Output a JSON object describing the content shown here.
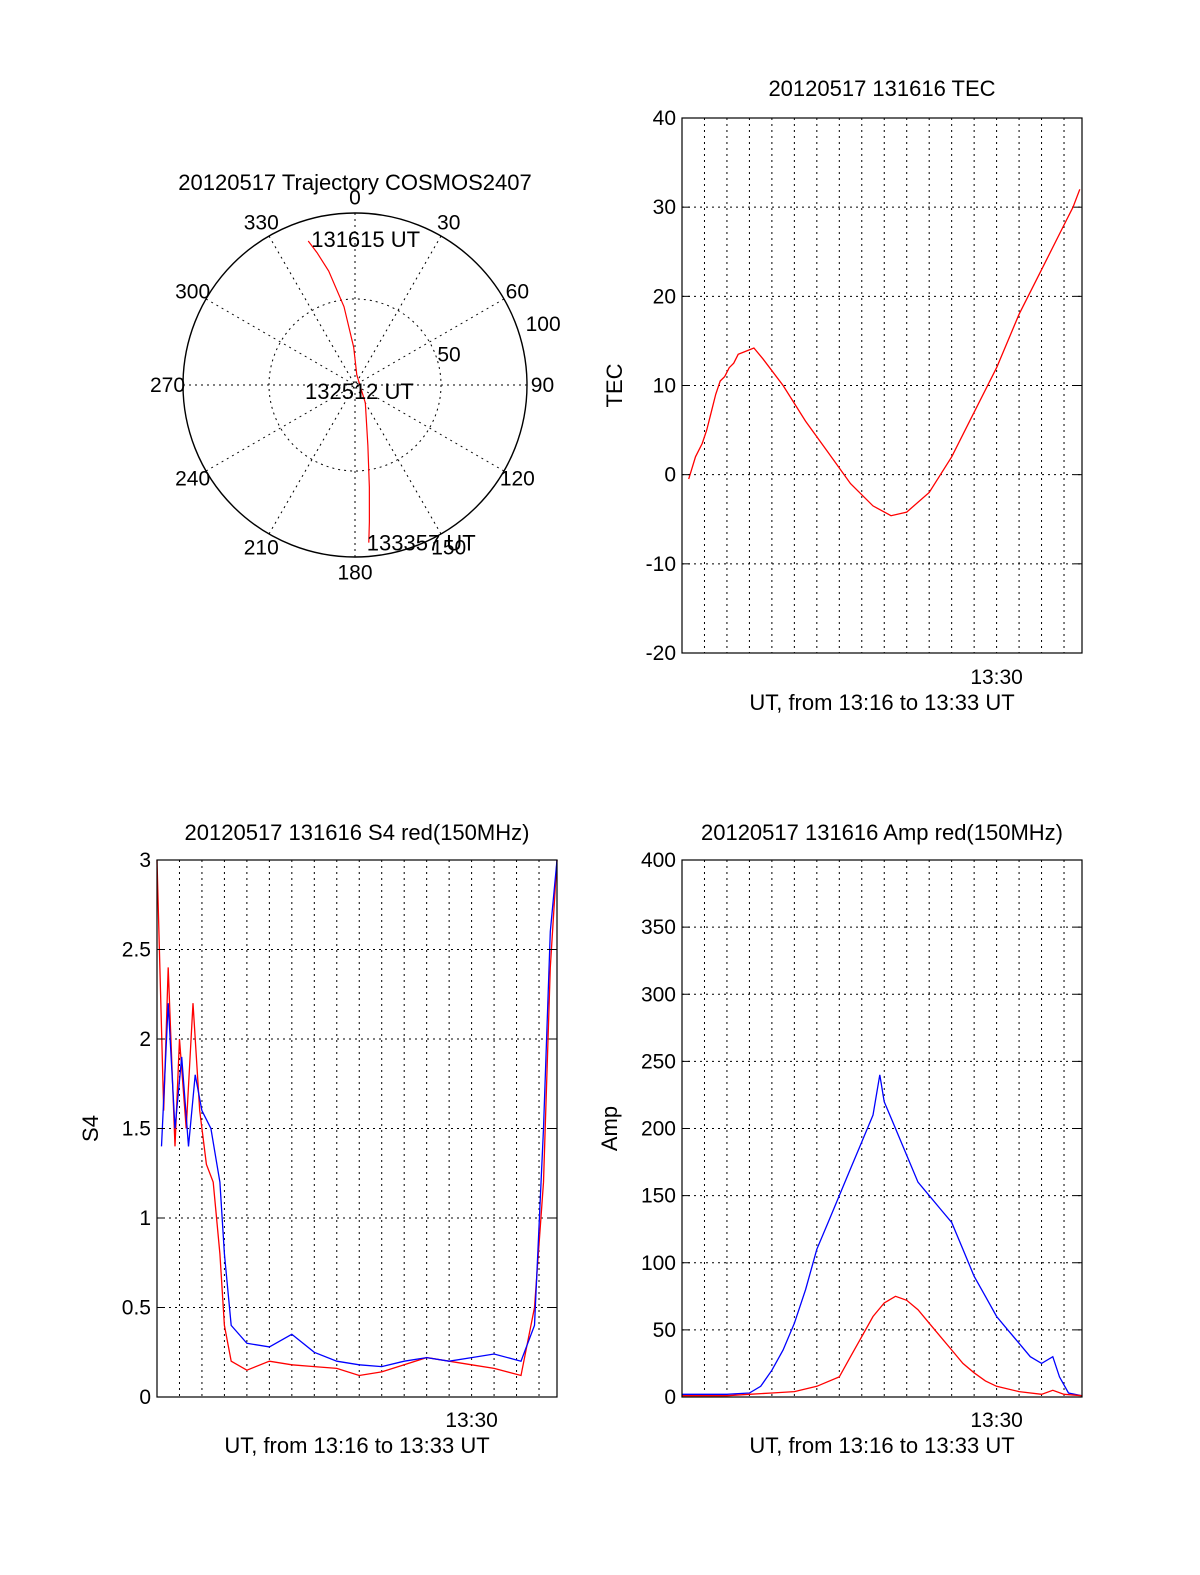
{
  "colors": {
    "red": "#ff0000",
    "blue": "#0000ff",
    "axis": "#000000"
  },
  "polar": {
    "title": "20120517 Trajectory COSMOS2407",
    "azimuth_labels": [
      "0",
      "30",
      "60",
      "90",
      "120",
      "150",
      "180",
      "210",
      "240",
      "270",
      "300",
      "330"
    ],
    "azimuths": [
      0,
      30,
      60,
      90,
      120,
      150,
      180,
      210,
      240,
      270,
      300,
      330
    ],
    "radius_labels": [
      "50",
      "100"
    ],
    "radius_values": [
      50,
      100
    ],
    "rmax": 100,
    "start_label": "131615 UT",
    "mid_label": "132512 UT",
    "end_label": "133357 UT",
    "track": [
      [
        342,
        88
      ],
      [
        344,
        80
      ],
      [
        347,
        68
      ],
      [
        352,
        46
      ],
      [
        358,
        22
      ],
      [
        10,
        6
      ],
      [
        150,
        12
      ],
      [
        168,
        36
      ],
      [
        172,
        60
      ],
      [
        174,
        80
      ],
      [
        175,
        92
      ]
    ]
  },
  "chart_data": [
    {
      "id": "tec",
      "type": "line",
      "title": "20120517 131616 TEC",
      "ylabel": "TEC",
      "xlabel": "UT, from 13:16 to 13:33 UT",
      "xlim": [
        0,
        17.8
      ],
      "ylim": [
        -20,
        40
      ],
      "yticks": [
        -20,
        -10,
        0,
        10,
        20,
        30,
        40
      ],
      "xtick_labels": [
        {
          "x": 14,
          "label": "13:30"
        }
      ],
      "xgrid": [
        1,
        2,
        3,
        4,
        5,
        6,
        7,
        8,
        9,
        10,
        11,
        12,
        13,
        14,
        15,
        16,
        17
      ],
      "series": [
        {
          "color": "red",
          "points": [
            [
              0.3,
              -0.5
            ],
            [
              0.6,
              2
            ],
            [
              0.9,
              3.5
            ],
            [
              1.1,
              5
            ],
            [
              1.3,
              7
            ],
            [
              1.5,
              9
            ],
            [
              1.7,
              10.5
            ],
            [
              1.9,
              11
            ],
            [
              2.1,
              12
            ],
            [
              2.3,
              12.5
            ],
            [
              2.5,
              13.5
            ],
            [
              2.8,
              13.8
            ],
            [
              3.2,
              14.2
            ],
            [
              3.6,
              13
            ],
            [
              4.5,
              10
            ],
            [
              5.5,
              6
            ],
            [
              6.5,
              2.5
            ],
            [
              7.5,
              -1
            ],
            [
              8.5,
              -3.5
            ],
            [
              9.3,
              -4.6
            ],
            [
              10,
              -4.2
            ],
            [
              11,
              -2
            ],
            [
              12,
              2
            ],
            [
              13,
              7
            ],
            [
              14,
              12
            ],
            [
              15,
              18
            ],
            [
              16,
              23
            ],
            [
              17,
              28
            ],
            [
              17.4,
              30
            ],
            [
              17.7,
              32
            ]
          ]
        }
      ]
    },
    {
      "id": "s4",
      "type": "line",
      "title": "20120517 131616 S4 red(150MHz)",
      "ylabel": "S4",
      "xlabel": "UT, from 13:16 to 13:33 UT",
      "xlim": [
        0,
        17.8
      ],
      "ylim": [
        0,
        3
      ],
      "yticks": [
        0,
        0.5,
        1,
        1.5,
        2,
        2.5,
        3
      ],
      "ytick_labels": [
        "0",
        "0.5",
        "1",
        "1.5",
        "2",
        "2.5",
        "3"
      ],
      "xtick_labels": [
        {
          "x": 14,
          "label": "13:30"
        }
      ],
      "xgrid": [
        1,
        2,
        3,
        4,
        5,
        6,
        7,
        8,
        9,
        10,
        11,
        12,
        13,
        14,
        15,
        16,
        17
      ],
      "series": [
        {
          "color": "red",
          "points": [
            [
              0,
              3
            ],
            [
              0.3,
              1.6
            ],
            [
              0.5,
              2.4
            ],
            [
              0.8,
              1.4
            ],
            [
              1.0,
              2.0
            ],
            [
              1.3,
              1.5
            ],
            [
              1.6,
              2.2
            ],
            [
              1.9,
              1.6
            ],
            [
              2.2,
              1.3
            ],
            [
              2.5,
              1.2
            ],
            [
              2.8,
              0.8
            ],
            [
              3.0,
              0.4
            ],
            [
              3.3,
              0.2
            ],
            [
              4,
              0.15
            ],
            [
              5,
              0.2
            ],
            [
              6,
              0.18
            ],
            [
              7,
              0.17
            ],
            [
              8,
              0.16
            ],
            [
              9,
              0.12
            ],
            [
              10,
              0.14
            ],
            [
              11,
              0.18
            ],
            [
              12,
              0.22
            ],
            [
              13,
              0.2
            ],
            [
              14,
              0.18
            ],
            [
              15,
              0.16
            ],
            [
              16.2,
              0.12
            ],
            [
              16.8,
              0.5
            ],
            [
              17.2,
              1.2
            ],
            [
              17.5,
              2.4
            ],
            [
              17.8,
              3
            ]
          ]
        },
        {
          "color": "blue",
          "points": [
            [
              0.2,
              1.4
            ],
            [
              0.5,
              2.2
            ],
            [
              0.8,
              1.5
            ],
            [
              1.1,
              1.9
            ],
            [
              1.4,
              1.4
            ],
            [
              1.7,
              1.8
            ],
            [
              2.0,
              1.6
            ],
            [
              2.4,
              1.5
            ],
            [
              2.8,
              1.2
            ],
            [
              3.0,
              0.8
            ],
            [
              3.3,
              0.4
            ],
            [
              4,
              0.3
            ],
            [
              5,
              0.28
            ],
            [
              6,
              0.35
            ],
            [
              7,
              0.25
            ],
            [
              8,
              0.2
            ],
            [
              9,
              0.18
            ],
            [
              10,
              0.17
            ],
            [
              11,
              0.2
            ],
            [
              12,
              0.22
            ],
            [
              13,
              0.2
            ],
            [
              14,
              0.22
            ],
            [
              15,
              0.24
            ],
            [
              16.2,
              0.2
            ],
            [
              16.8,
              0.4
            ],
            [
              17.2,
              1.5
            ],
            [
              17.5,
              2.6
            ],
            [
              17.8,
              3
            ]
          ]
        }
      ]
    },
    {
      "id": "amp",
      "type": "line",
      "title": "20120517 131616 Amp red(150MHz)",
      "ylabel": "Amp",
      "xlabel": "UT, from 13:16 to 13:33 UT",
      "xlim": [
        0,
        17.8
      ],
      "ylim": [
        0,
        400
      ],
      "yticks": [
        0,
        50,
        100,
        150,
        200,
        250,
        300,
        350,
        400
      ],
      "xtick_labels": [
        {
          "x": 14,
          "label": "13:30"
        }
      ],
      "xgrid": [
        1,
        2,
        3,
        4,
        5,
        6,
        7,
        8,
        9,
        10,
        11,
        12,
        13,
        14,
        15,
        16,
        17
      ],
      "series": [
        {
          "color": "blue",
          "points": [
            [
              0,
              2
            ],
            [
              1,
              2
            ],
            [
              2,
              2
            ],
            [
              3,
              3
            ],
            [
              3.5,
              8
            ],
            [
              4,
              20
            ],
            [
              4.5,
              35
            ],
            [
              5,
              55
            ],
            [
              5.5,
              80
            ],
            [
              6,
              110
            ],
            [
              6.5,
              130
            ],
            [
              7,
              150
            ],
            [
              7.5,
              170
            ],
            [
              8,
              190
            ],
            [
              8.5,
              210
            ],
            [
              8.8,
              240
            ],
            [
              9,
              220
            ],
            [
              9.5,
              200
            ],
            [
              10,
              180
            ],
            [
              10.5,
              160
            ],
            [
              11,
              150
            ],
            [
              11.5,
              140
            ],
            [
              12,
              130
            ],
            [
              12.5,
              110
            ],
            [
              13,
              90
            ],
            [
              13.5,
              75
            ],
            [
              14,
              60
            ],
            [
              14.5,
              50
            ],
            [
              15,
              40
            ],
            [
              15.5,
              30
            ],
            [
              16,
              25
            ],
            [
              16.5,
              30
            ],
            [
              16.8,
              15
            ],
            [
              17.2,
              3
            ],
            [
              17.8,
              1
            ]
          ]
        },
        {
          "color": "red",
          "points": [
            [
              0,
              1
            ],
            [
              2,
              1
            ],
            [
              3,
              2
            ],
            [
              4,
              3
            ],
            [
              5,
              4
            ],
            [
              6,
              8
            ],
            [
              7,
              15
            ],
            [
              7.5,
              30
            ],
            [
              8,
              45
            ],
            [
              8.5,
              60
            ],
            [
              9,
              70
            ],
            [
              9.5,
              75
            ],
            [
              10,
              72
            ],
            [
              10.5,
              65
            ],
            [
              11,
              55
            ],
            [
              11.5,
              45
            ],
            [
              12,
              35
            ],
            [
              12.5,
              25
            ],
            [
              13,
              18
            ],
            [
              13.5,
              12
            ],
            [
              14,
              8
            ],
            [
              15,
              4
            ],
            [
              16,
              2
            ],
            [
              16.5,
              5
            ],
            [
              17,
              2
            ],
            [
              17.8,
              1
            ]
          ]
        }
      ]
    }
  ]
}
